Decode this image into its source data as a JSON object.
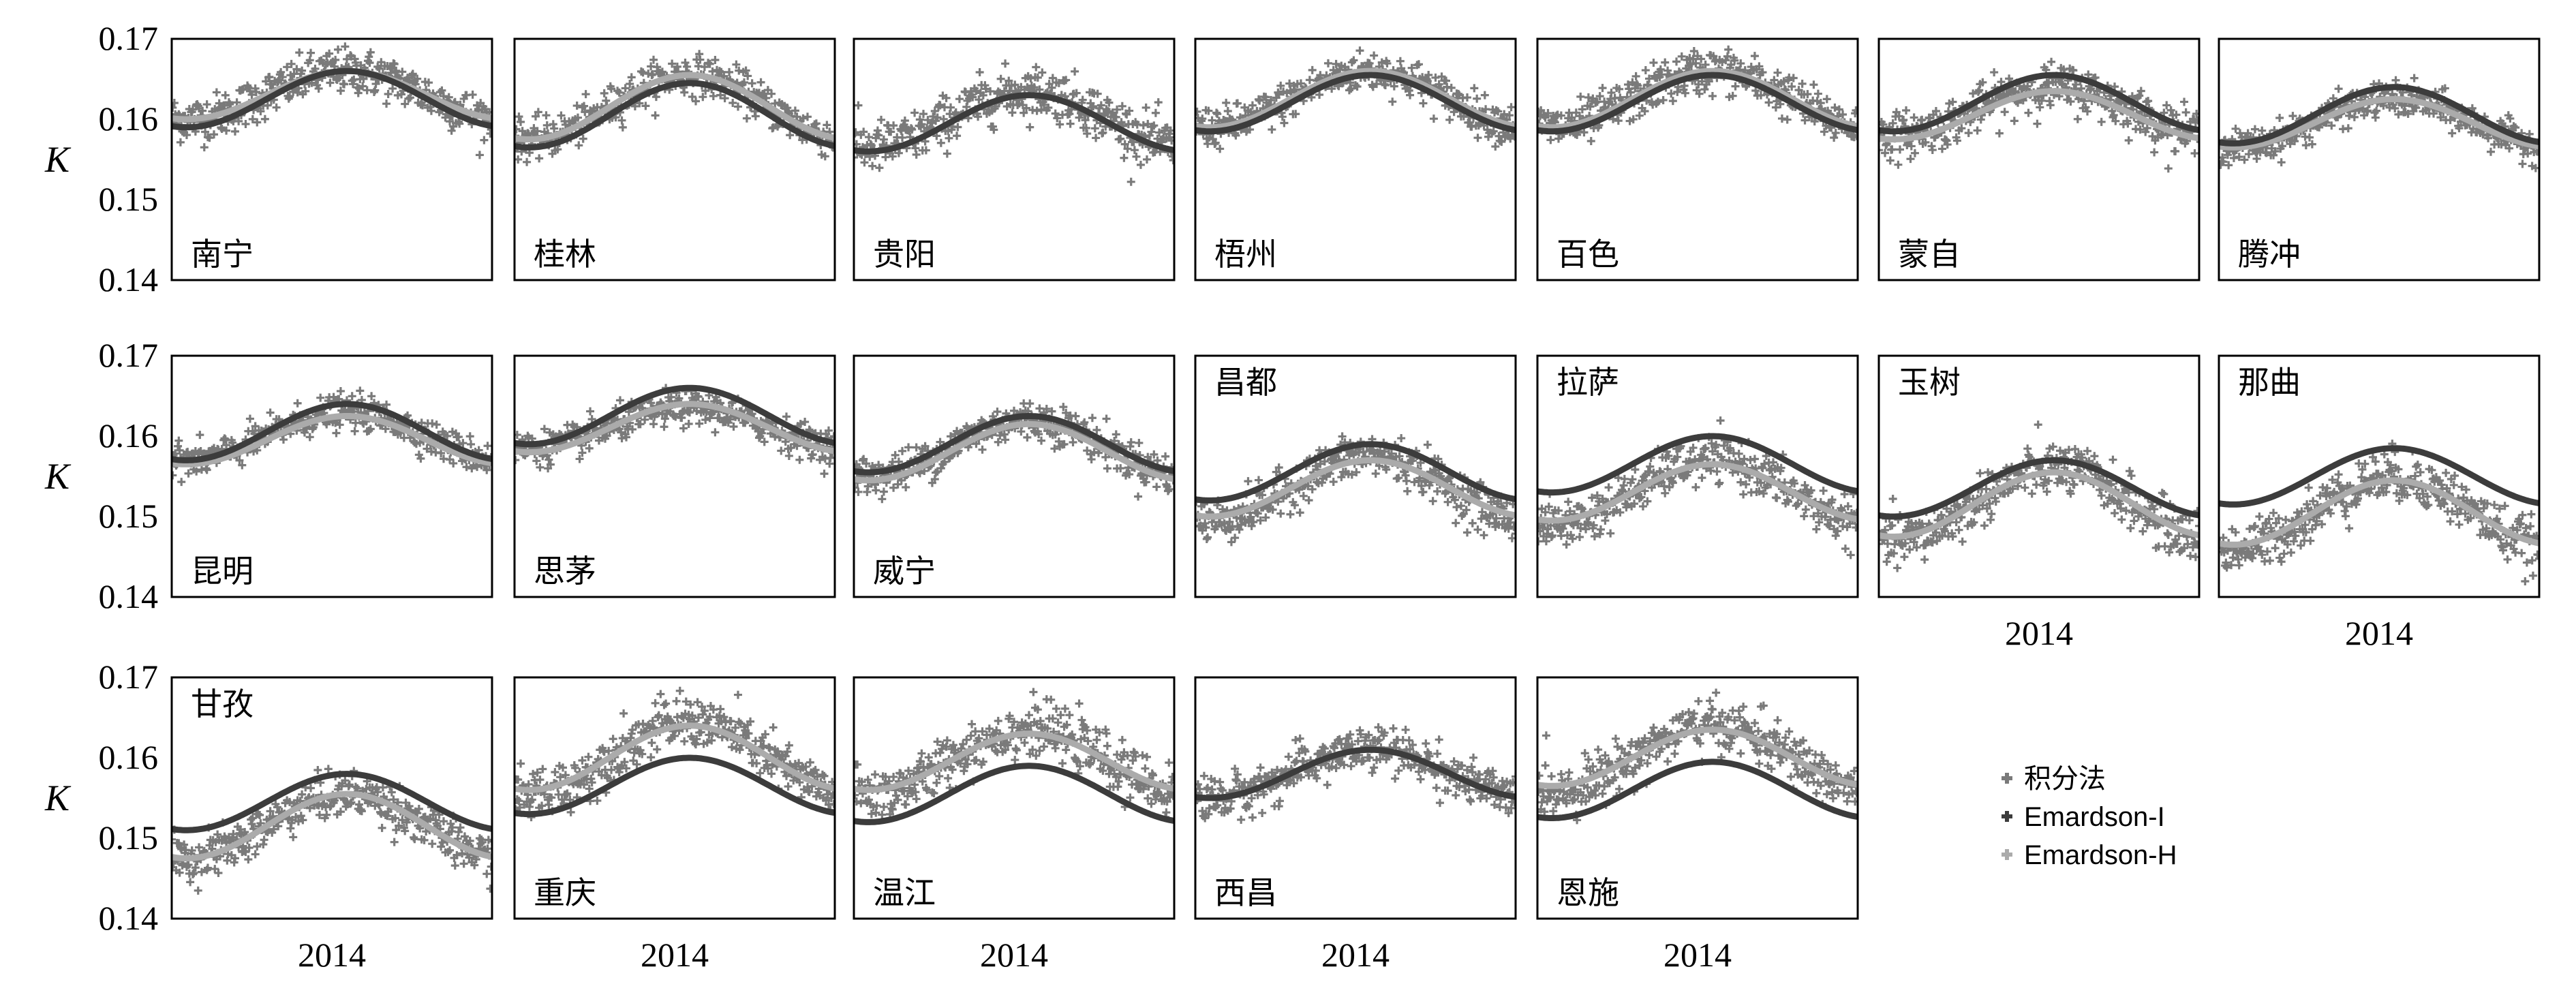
{
  "chart_data": {
    "type": "scatter",
    "layout": "small-multiples",
    "ylabel": "K",
    "xtick_label": "2014",
    "ylim": [
      0.14,
      0.17
    ],
    "yticks": [
      0.14,
      0.15,
      0.16,
      0.17
    ],
    "ytick_labels": [
      "0.14",
      "0.15",
      "0.16",
      "0.17"
    ],
    "x_domain": "day of year 2014 (1-365)",
    "legend": {
      "placement": "right of bottom row",
      "entries": [
        {
          "key": "integral",
          "label": "积分法",
          "color": "#7a7a7a"
        },
        {
          "key": "emI",
          "label": "Emardson-I",
          "color": "#3c3c3c"
        },
        {
          "key": "emH",
          "label": "Emardson-H",
          "color": "#ababab"
        }
      ]
    },
    "colors": {
      "integral": "#7a7a7a",
      "emI": "#3c3c3c",
      "emH": "#ababab"
    },
    "panels": [
      {
        "name": "南宁",
        "label_pos": "bottom",
        "emI": {
          "mean": 0.1625,
          "amp": 0.0035,
          "peak_day": 200
        },
        "emH": {
          "mean": 0.163,
          "amp": 0.003,
          "peak_day": 200
        },
        "integral": {
          "mean": 0.163,
          "amp": 0.003,
          "spread": 0.004
        }
      },
      {
        "name": "桂林",
        "label_pos": "bottom",
        "emI": {
          "mean": 0.1605,
          "amp": 0.004,
          "peak_day": 200
        },
        "emH": {
          "mean": 0.1615,
          "amp": 0.004,
          "peak_day": 200
        },
        "integral": {
          "mean": 0.1615,
          "amp": 0.004,
          "spread": 0.0035
        }
      },
      {
        "name": "贵阳",
        "label_pos": "bottom",
        "emI": {
          "mean": 0.1595,
          "amp": 0.0035,
          "peak_day": 200
        },
        "emH": {
          "mean": 0.1595,
          "amp": 0.0035,
          "peak_day": 200
        },
        "integral": {
          "mean": 0.16,
          "amp": 0.0035,
          "spread": 0.0045
        }
      },
      {
        "name": "梧州",
        "label_pos": "bottom",
        "emI": {
          "mean": 0.162,
          "amp": 0.0035,
          "peak_day": 200
        },
        "emH": {
          "mean": 0.1625,
          "amp": 0.0035,
          "peak_day": 200
        },
        "integral": {
          "mean": 0.1625,
          "amp": 0.0035,
          "spread": 0.0035
        }
      },
      {
        "name": "百色",
        "label_pos": "bottom",
        "emI": {
          "mean": 0.162,
          "amp": 0.0035,
          "peak_day": 200
        },
        "emH": {
          "mean": 0.1625,
          "amp": 0.0035,
          "peak_day": 200
        },
        "integral": {
          "mean": 0.1625,
          "amp": 0.0035,
          "spread": 0.004
        }
      },
      {
        "name": "蒙自",
        "label_pos": "bottom",
        "emI": {
          "mean": 0.162,
          "amp": 0.0035,
          "peak_day": 200
        },
        "emH": {
          "mean": 0.1605,
          "amp": 0.003,
          "peak_day": 200
        },
        "integral": {
          "mean": 0.161,
          "amp": 0.003,
          "spread": 0.004
        }
      },
      {
        "name": "腾冲",
        "label_pos": "bottom",
        "emI": {
          "mean": 0.1605,
          "amp": 0.0035,
          "peak_day": 200
        },
        "emH": {
          "mean": 0.1595,
          "amp": 0.003,
          "peak_day": 200
        },
        "integral": {
          "mean": 0.1595,
          "amp": 0.003,
          "spread": 0.003
        }
      },
      {
        "name": "昆明",
        "label_pos": "bottom",
        "emI": {
          "mean": 0.1605,
          "amp": 0.0035,
          "peak_day": 200
        },
        "emH": {
          "mean": 0.1595,
          "amp": 0.003,
          "peak_day": 200
        },
        "integral": {
          "mean": 0.16,
          "amp": 0.003,
          "spread": 0.003
        }
      },
      {
        "name": "思茅",
        "label_pos": "bottom",
        "emI": {
          "mean": 0.1625,
          "amp": 0.0035,
          "peak_day": 200
        },
        "emH": {
          "mean": 0.161,
          "amp": 0.003,
          "peak_day": 200
        },
        "integral": {
          "mean": 0.161,
          "amp": 0.0025,
          "spread": 0.003
        }
      },
      {
        "name": "威宁",
        "label_pos": "bottom",
        "emI": {
          "mean": 0.159,
          "amp": 0.0035,
          "peak_day": 200
        },
        "emH": {
          "mean": 0.158,
          "amp": 0.0035,
          "peak_day": 200
        },
        "integral": {
          "mean": 0.1585,
          "amp": 0.0035,
          "spread": 0.0035
        }
      },
      {
        "name": "昌都",
        "label_pos": "top",
        "emI": {
          "mean": 0.1555,
          "amp": 0.0035,
          "peak_day": 200
        },
        "emH": {
          "mean": 0.1535,
          "amp": 0.0035,
          "peak_day": 200
        },
        "integral": {
          "mean": 0.1535,
          "amp": 0.004,
          "spread": 0.004
        }
      },
      {
        "name": "拉萨",
        "label_pos": "top",
        "emI": {
          "mean": 0.1565,
          "amp": 0.0035,
          "peak_day": 200
        },
        "emH": {
          "mean": 0.153,
          "amp": 0.0035,
          "peak_day": 200
        },
        "integral": {
          "mean": 0.153,
          "amp": 0.004,
          "spread": 0.004
        }
      },
      {
        "name": "玉树",
        "label_pos": "top",
        "emI": {
          "mean": 0.1535,
          "amp": 0.0035,
          "peak_day": 200
        },
        "emH": {
          "mean": 0.1515,
          "amp": 0.004,
          "peak_day": 200
        },
        "integral": {
          "mean": 0.1515,
          "amp": 0.0045,
          "spread": 0.0045
        }
      },
      {
        "name": "那曲",
        "label_pos": "top",
        "emI": {
          "mean": 0.155,
          "amp": 0.0035,
          "peak_day": 200
        },
        "emH": {
          "mean": 0.1505,
          "amp": 0.004,
          "peak_day": 200
        },
        "integral": {
          "mean": 0.1505,
          "amp": 0.0045,
          "spread": 0.0045
        }
      },
      {
        "name": "甘孜",
        "label_pos": "top",
        "emI": {
          "mean": 0.1545,
          "amp": 0.0035,
          "peak_day": 200
        },
        "emH": {
          "mean": 0.1515,
          "amp": 0.004,
          "peak_day": 200
        },
        "integral": {
          "mean": 0.1515,
          "amp": 0.004,
          "spread": 0.004
        }
      },
      {
        "name": "重庆",
        "label_pos": "bottom",
        "emI": {
          "mean": 0.1565,
          "amp": 0.0035,
          "peak_day": 200
        },
        "emH": {
          "mean": 0.16,
          "amp": 0.004,
          "peak_day": 200
        },
        "integral": {
          "mean": 0.16,
          "amp": 0.0045,
          "spread": 0.0045
        }
      },
      {
        "name": "温江",
        "label_pos": "bottom",
        "emI": {
          "mean": 0.1555,
          "amp": 0.0035,
          "peak_day": 200
        },
        "emH": {
          "mean": 0.1595,
          "amp": 0.0035,
          "peak_day": 200
        },
        "integral": {
          "mean": 0.1595,
          "amp": 0.004,
          "spread": 0.0045
        }
      },
      {
        "name": "西昌",
        "label_pos": "bottom",
        "emI": {
          "mean": 0.158,
          "amp": 0.003,
          "peak_day": 200
        },
        "emH": {
          "mean": 0.158,
          "amp": 0.003,
          "peak_day": 200
        },
        "integral": {
          "mean": 0.158,
          "amp": 0.003,
          "spread": 0.004
        }
      },
      {
        "name": "恩施",
        "label_pos": "bottom",
        "emI": {
          "mean": 0.156,
          "amp": 0.0035,
          "peak_day": 200
        },
        "emH": {
          "mean": 0.16,
          "amp": 0.0035,
          "peak_day": 200
        },
        "integral": {
          "mean": 0.16,
          "amp": 0.004,
          "spread": 0.0045
        }
      }
    ],
    "grid": false
  }
}
